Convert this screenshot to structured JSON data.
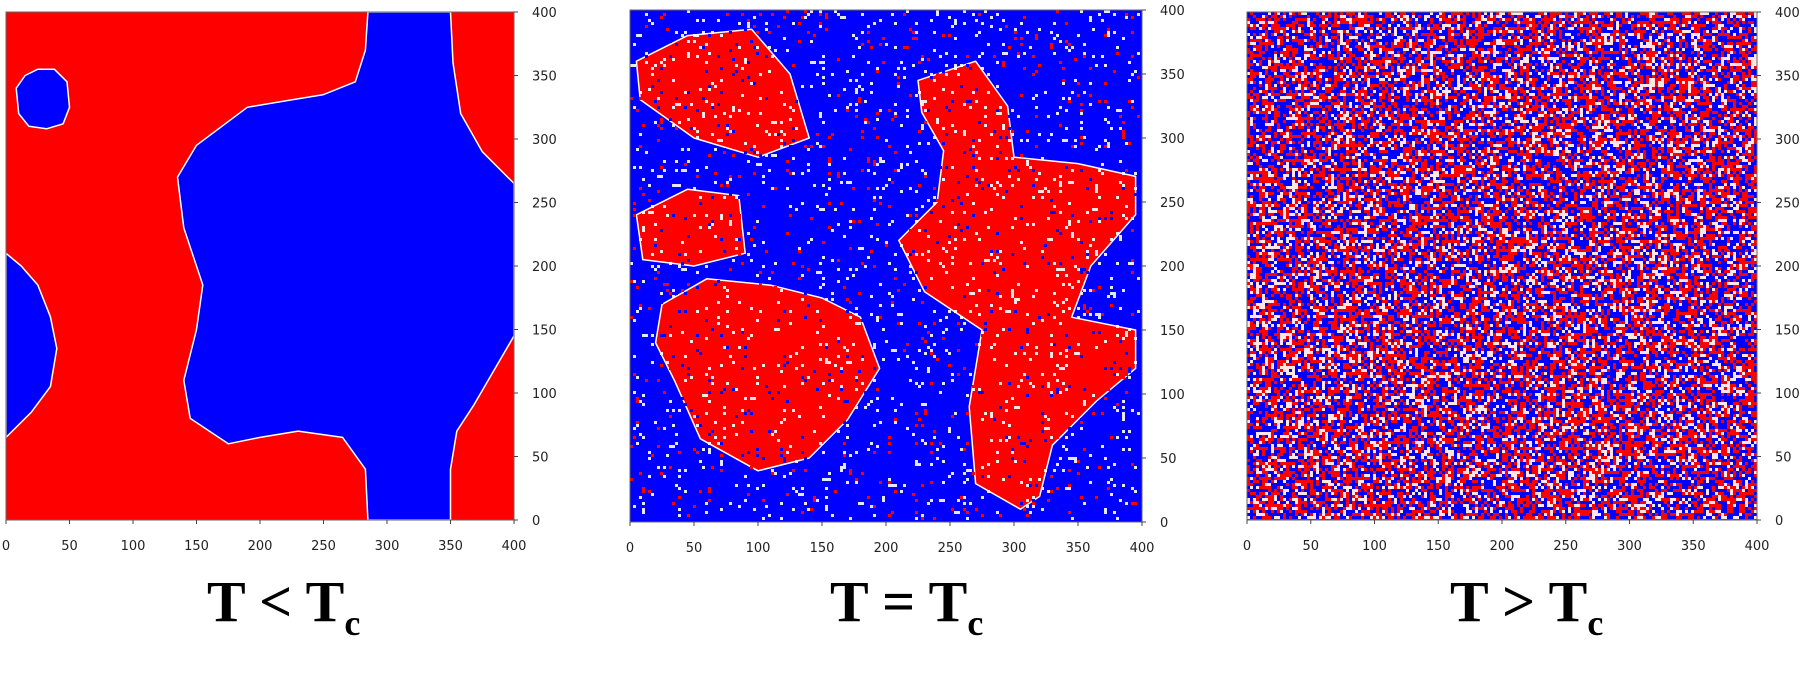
{
  "colors": {
    "up": "#ff0000",
    "down": "#0000ff",
    "boundary": "#ffffff"
  },
  "chart_data": [
    {
      "type": "heatmap",
      "title": "T < Tc",
      "caption": {
        "lhs": "T",
        "op": "<",
        "rhs": "T",
        "sub": "c"
      },
      "xlim": [
        0,
        400
      ],
      "ylim": [
        0,
        400
      ],
      "xticks": [
        0,
        50,
        100,
        150,
        200,
        250,
        300,
        350,
        400
      ],
      "yticks": [
        0,
        50,
        100,
        150,
        200,
        250,
        300,
        350,
        400
      ],
      "grid": false,
      "legend": "none",
      "domains": [
        {
          "spin": "down",
          "polygon": [
            [
              285,
              400
            ],
            [
              350,
              400
            ],
            [
              352,
              360
            ],
            [
              358,
              320
            ],
            [
              375,
              290
            ],
            [
              400,
              265
            ],
            [
              400,
              145
            ],
            [
              368,
              90
            ],
            [
              355,
              70
            ],
            [
              350,
              40
            ],
            [
              350,
              0
            ],
            [
              285,
              0
            ],
            [
              283,
              40
            ],
            [
              265,
              65
            ],
            [
              230,
              70
            ],
            [
              200,
              65
            ],
            [
              175,
              60
            ],
            [
              145,
              80
            ],
            [
              140,
              110
            ],
            [
              150,
              150
            ],
            [
              155,
              185
            ],
            [
              140,
              230
            ],
            [
              135,
              270
            ],
            [
              150,
              295
            ],
            [
              170,
              310
            ],
            [
              190,
              325
            ],
            [
              220,
              330
            ],
            [
              250,
              335
            ],
            [
              275,
              345
            ],
            [
              283,
              370
            ]
          ]
        },
        {
          "spin": "down",
          "polygon": [
            [
              0,
              210
            ],
            [
              0,
              65
            ],
            [
              20,
              85
            ],
            [
              35,
              105
            ],
            [
              40,
              135
            ],
            [
              35,
              160
            ],
            [
              25,
              185
            ],
            [
              12,
              200
            ]
          ]
        },
        {
          "spin": "down",
          "polygon": [
            [
              8,
              340
            ],
            [
              15,
              350
            ],
            [
              25,
              355
            ],
            [
              38,
              355
            ],
            [
              48,
              345
            ],
            [
              50,
              325
            ],
            [
              45,
              312
            ],
            [
              32,
              308
            ],
            [
              18,
              310
            ],
            [
              10,
              320
            ]
          ]
        }
      ]
    },
    {
      "type": "heatmap",
      "title": "T = Tc",
      "caption": {
        "lhs": "T",
        "op": "=",
        "rhs": "T",
        "sub": "c"
      },
      "xlim": [
        0,
        400
      ],
      "ylim": [
        0,
        400
      ],
      "xticks": [
        0,
        50,
        100,
        150,
        200,
        250,
        300,
        350,
        400
      ],
      "yticks": [
        0,
        50,
        100,
        150,
        200,
        250,
        300,
        350,
        400
      ],
      "grid": false,
      "legend": "none",
      "noise_fraction": 0.17,
      "domains": [
        {
          "spin": "up",
          "polygon": [
            [
              5,
              360
            ],
            [
              45,
              380
            ],
            [
              95,
              385
            ],
            [
              125,
              350
            ],
            [
              140,
              300
            ],
            [
              100,
              285
            ],
            [
              50,
              300
            ],
            [
              8,
              330
            ]
          ]
        },
        {
          "spin": "up",
          "polygon": [
            [
              5,
              240
            ],
            [
              45,
              260
            ],
            [
              85,
              255
            ],
            [
              90,
              210
            ],
            [
              50,
              200
            ],
            [
              10,
              205
            ]
          ]
        },
        {
          "spin": "up",
          "polygon": [
            [
              25,
              170
            ],
            [
              60,
              190
            ],
            [
              110,
              185
            ],
            [
              150,
              175
            ],
            [
              180,
              160
            ],
            [
              195,
              120
            ],
            [
              170,
              80
            ],
            [
              140,
              50
            ],
            [
              100,
              40
            ],
            [
              55,
              65
            ],
            [
              35,
              110
            ],
            [
              20,
              140
            ]
          ]
        },
        {
          "spin": "up",
          "polygon": [
            [
              225,
              345
            ],
            [
              270,
              360
            ],
            [
              295,
              325
            ],
            [
              300,
              285
            ],
            [
              350,
              280
            ],
            [
              395,
              270
            ],
            [
              395,
              240
            ],
            [
              360,
              200
            ],
            [
              345,
              160
            ],
            [
              395,
              150
            ],
            [
              395,
              120
            ],
            [
              365,
              95
            ],
            [
              330,
              60
            ],
            [
              320,
              20
            ],
            [
              305,
              10
            ],
            [
              270,
              30
            ],
            [
              265,
              90
            ],
            [
              275,
              150
            ],
            [
              230,
              180
            ],
            [
              210,
              220
            ],
            [
              240,
              250
            ],
            [
              245,
              290
            ],
            [
              228,
              320
            ]
          ]
        }
      ]
    },
    {
      "type": "heatmap",
      "title": "T > Tc",
      "caption": {
        "lhs": "T",
        "op": ">",
        "rhs": "T",
        "sub": "c"
      },
      "xlim": [
        0,
        400
      ],
      "ylim": [
        0,
        400
      ],
      "xticks": [
        0,
        50,
        100,
        150,
        200,
        250,
        300,
        350,
        400
      ],
      "yticks": [
        0,
        50,
        100,
        150,
        200,
        250,
        300,
        350,
        400
      ],
      "grid": false,
      "legend": "none",
      "noise_fraction": 0.5
    }
  ]
}
